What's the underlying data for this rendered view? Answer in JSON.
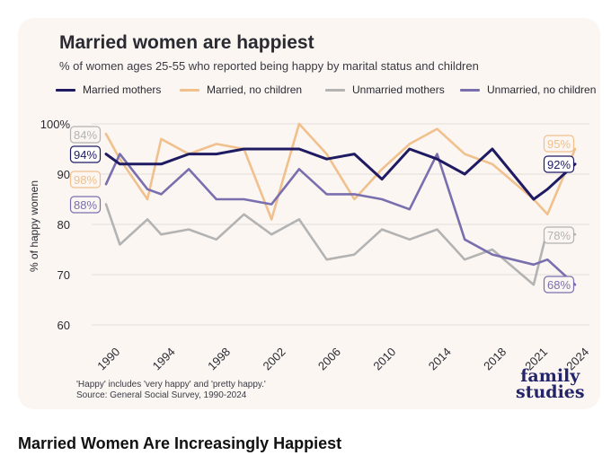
{
  "card": {
    "title": "Married women are happiest",
    "subtitle": "% of women ages 25-55 who reported being happy by marital status and children",
    "footnote_1": "'Happy' includes 'very happy' and 'pretty happy.'",
    "footnote_2": "Source: General Social Survey, 1990-2024",
    "logo_1": "family",
    "logo_2": "studies"
  },
  "caption": "Married Women Are Increasingly Happiest",
  "chart_data": {
    "type": "line",
    "title": "Married women are happiest",
    "subtitle": "% of women ages 25-55 who reported being happy by marital status and children",
    "ylabel": "% of happy women",
    "xlabel": "",
    "ylim": [
      60,
      100
    ],
    "xlim": [
      1990,
      2024
    ],
    "y_ticks": [
      60,
      70,
      80,
      90,
      100
    ],
    "y_tick_labels": [
      "60",
      "70",
      "80",
      "90",
      "100%"
    ],
    "x_ticks": [
      1990,
      1994,
      1998,
      2002,
      2006,
      2010,
      2014,
      2018,
      2021,
      2024
    ],
    "x_tick_labels": [
      "1990",
      "1994",
      "1998",
      "2002",
      "2006",
      "2010",
      "2014",
      "2018",
      "2021",
      "2024"
    ],
    "grid": "horizontal",
    "legend_position": "top",
    "x": [
      1990,
      1991,
      1993,
      1994,
      1996,
      1998,
      2000,
      2002,
      2004,
      2006,
      2008,
      2010,
      2012,
      2014,
      2016,
      2018,
      2021,
      2022,
      2024
    ],
    "series": [
      {
        "name": "Married mothers",
        "color": "#1f1b63",
        "values": [
          94,
          92,
          92,
          92,
          94,
          94,
          95,
          95,
          95,
          93,
          94,
          89,
          95,
          93,
          90,
          95,
          85,
          87,
          92
        ],
        "start_label": "94%",
        "end_label": "92%"
      },
      {
        "name": "Married, no children",
        "color": "#f0c08d",
        "values": [
          98,
          93,
          85,
          97,
          94,
          96,
          95,
          81,
          100,
          94,
          85,
          91,
          96,
          99,
          94,
          92,
          85,
          82,
          95
        ],
        "start_label": "98%",
        "end_label": "95%"
      },
      {
        "name": "Unmarried mothers",
        "color": "#b3b3b3",
        "values": [
          84,
          76,
          81,
          78,
          79,
          77,
          82,
          78,
          81,
          73,
          74,
          79,
          77,
          79,
          73,
          75,
          68,
          79,
          78
        ],
        "start_label": "84%",
        "end_label": "78%"
      },
      {
        "name": "Unmarried, no children",
        "color": "#7a6fae",
        "values": [
          88,
          94,
          87,
          86,
          91,
          85,
          85,
          84,
          91,
          86,
          86,
          85,
          83,
          94,
          77,
          74,
          72,
          73,
          68
        ],
        "start_label": "88%",
        "end_label": "68%"
      }
    ]
  }
}
